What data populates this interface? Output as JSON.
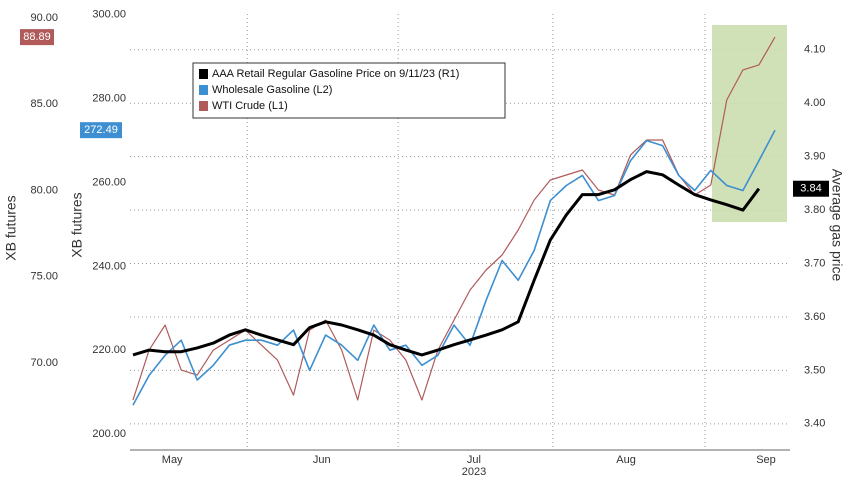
{
  "chart_data": {
    "type": "line",
    "x": [
      0,
      2.5,
      5,
      7.5,
      10,
      12.5,
      15,
      17.5,
      20,
      22.5,
      25,
      27.5,
      30,
      32.5,
      35,
      37.5,
      40,
      42.5,
      45,
      47.5,
      50,
      52.5,
      55,
      57.5,
      60,
      62.5,
      65,
      67.5,
      70,
      72.5,
      75,
      77.5,
      80,
      82.5,
      85,
      87.5,
      90,
      92.5,
      95,
      97.5,
      100
    ],
    "xlim": [
      -0.47,
      102.34
    ],
    "xgrid": [
      17.8,
      41.3,
      65.4,
      89.1
    ],
    "xticks": [
      {
        "value": 6.1,
        "label": "May"
      },
      {
        "value": 29.4,
        "label": "Jun"
      },
      {
        "value": 53.1,
        "label": "Jul"
      },
      {
        "value": 76.8,
        "label": "Aug"
      },
      {
        "value": 98.6,
        "label": "Sep"
      }
    ],
    "year_label": "2023",
    "ylabel": "XB futures",
    "ylim": [
      64.96,
      90.23
    ],
    "yticks": [
      {
        "value": 70,
        "label": "70.00"
      },
      {
        "value": 75,
        "label": "75.00"
      },
      {
        "value": 80,
        "label": "80.00"
      },
      {
        "value": 85,
        "label": "85.00"
      },
      {
        "value": 90,
        "label": "90.00"
      }
    ],
    "y2label": "XB futures",
    "y2lim": [
      196.2,
      300.2
    ],
    "y2ticks": [
      {
        "value": 200,
        "label": "200.00"
      },
      {
        "value": 220,
        "label": "220.00"
      },
      {
        "value": 240,
        "label": "240.00"
      },
      {
        "value": 260,
        "label": "260.00"
      },
      {
        "value": 280,
        "label": "280.00"
      },
      {
        "value": 300,
        "label": "300.00"
      }
    ],
    "y3label": "Average gas price",
    "y3lim": [
      3.351,
      4.167
    ],
    "y3ticks": [
      {
        "value": 3.4,
        "label": "3.40"
      },
      {
        "value": 3.5,
        "label": "3.50"
      },
      {
        "value": 3.6,
        "label": "3.60"
      },
      {
        "value": 3.7,
        "label": "3.70"
      },
      {
        "value": 3.8,
        "label": "3.80"
      },
      {
        "value": 3.9,
        "label": "3.90"
      },
      {
        "value": 4.0,
        "label": "4.00"
      },
      {
        "value": 4.1,
        "label": "4.10"
      }
    ],
    "grid": true,
    "series": [
      {
        "name": "AAA Retail Regular Gasoline Price on 9/11/23 (R1)",
        "color": "#000000",
        "axis": "y3",
        "width": 3,
        "values": [
          3.529,
          3.538,
          3.535,
          3.535,
          3.542,
          3.551,
          3.566,
          3.576,
          3.566,
          3.557,
          3.548,
          3.58,
          3.591,
          3.585,
          3.576,
          3.566,
          3.548,
          3.538,
          3.529,
          3.538,
          3.548,
          3.557,
          3.566,
          3.576,
          3.591,
          3.669,
          3.744,
          3.791,
          3.829,
          3.829,
          3.838,
          3.857,
          3.872,
          3.866,
          3.847,
          3.829,
          3.819,
          3.81,
          3.8,
          3.84,
          null
        ]
      },
      {
        "name": "Wholesale Gasoline (L2)",
        "color": "#3d8fd1",
        "axis": "y2",
        "width": 1.6,
        "values": [
          206.9,
          214.0,
          218.8,
          222.4,
          212.9,
          216.4,
          221.2,
          222.4,
          222.4,
          221.2,
          224.8,
          215.2,
          223.6,
          221.2,
          217.6,
          226.0,
          220.0,
          221.2,
          216.4,
          218.8,
          226.0,
          221.2,
          231.9,
          241.4,
          236.7,
          243.8,
          255.7,
          259.3,
          261.7,
          255.7,
          256.9,
          265.2,
          270.0,
          268.8,
          261.7,
          258.1,
          262.9,
          259.3,
          258.1,
          265.2,
          272.49
        ]
      },
      {
        "name": "WTI Crude (L1)",
        "color": "#b05a5a",
        "axis": "y",
        "width": 1.2,
        "values": [
          67.86,
          70.75,
          72.2,
          69.59,
          69.3,
          70.75,
          71.33,
          71.91,
          71.04,
          70.17,
          68.14,
          71.91,
          72.49,
          70.75,
          67.86,
          71.91,
          71.33,
          70.17,
          67.86,
          70.75,
          72.49,
          74.23,
          75.39,
          76.26,
          77.71,
          79.45,
          80.61,
          80.9,
          81.19,
          80.03,
          79.74,
          82.06,
          82.93,
          82.93,
          80.9,
          79.74,
          80.32,
          85.25,
          86.99,
          87.28,
          88.89
        ]
      }
    ],
    "legend": "upper left"
  }
}
